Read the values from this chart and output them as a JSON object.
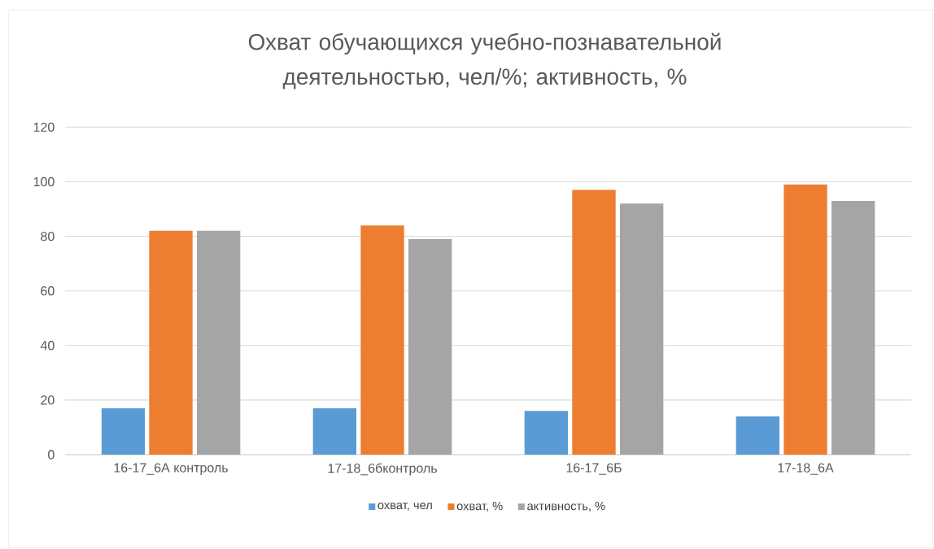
{
  "chart_data": {
    "type": "bar",
    "title": "Охват обучающихся учебно-познавательной деятельностью, чел/%; активность, %",
    "categories": [
      "16-17_6А контроль",
      "17-18_6бконтроль",
      "16-17_6Б",
      "17-18_6А"
    ],
    "series": [
      {
        "name": "охват, чел",
        "color": "#5b9bd5",
        "values": [
          17,
          17,
          16,
          14
        ]
      },
      {
        "name": "охват, %",
        "color": "#ed7d31",
        "values": [
          82,
          84,
          97,
          99
        ]
      },
      {
        "name": "активность, %",
        "color": "#a5a5a5",
        "values": [
          82,
          79,
          92,
          93
        ]
      }
    ],
    "ylim": [
      0,
      120
    ],
    "yticks": [
      0,
      20,
      40,
      60,
      80,
      100,
      120
    ],
    "grid": "y",
    "legend": "bottom"
  }
}
